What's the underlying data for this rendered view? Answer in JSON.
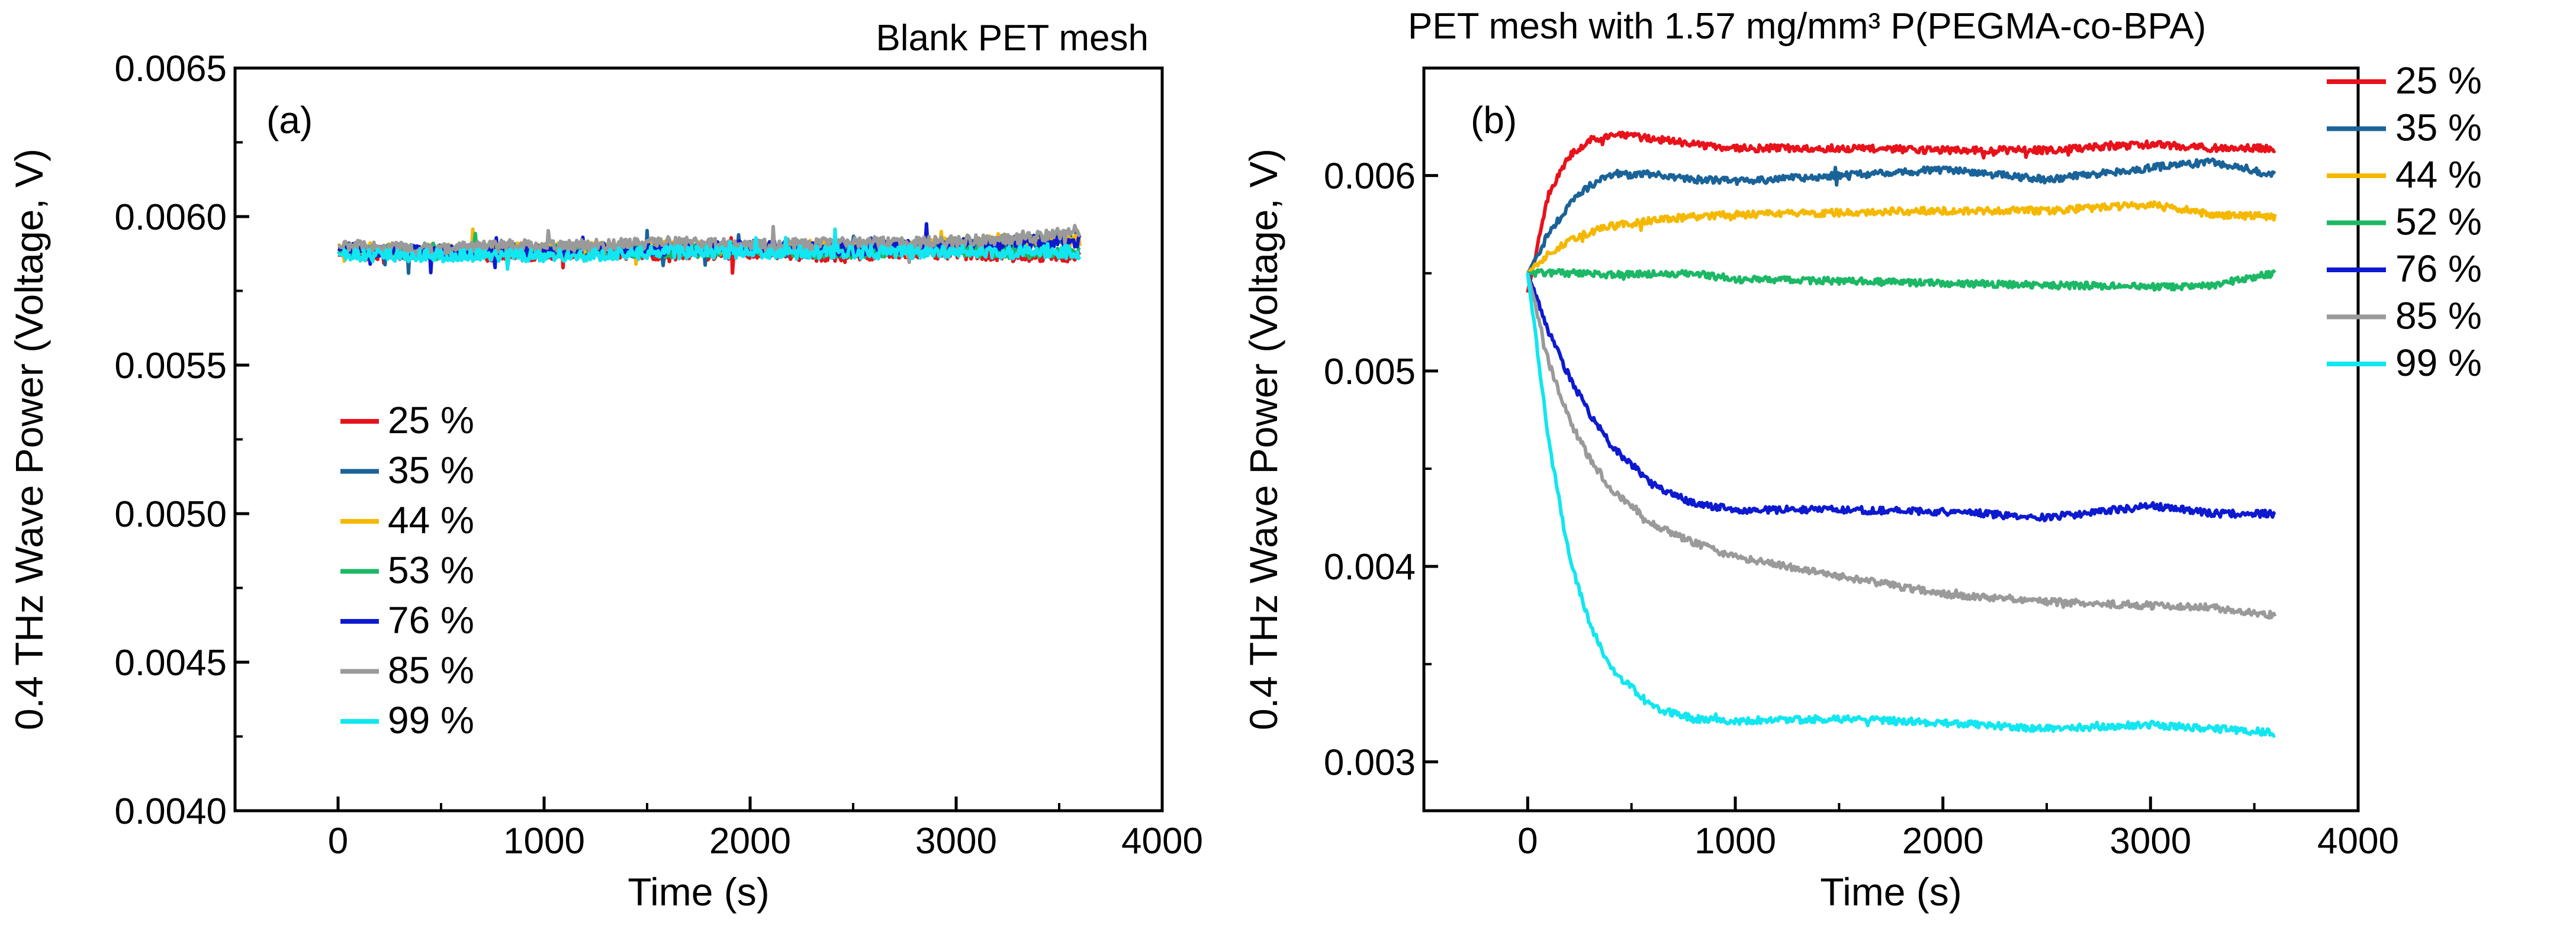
{
  "chart_data": [
    {
      "type": "line",
      "panel": "(a)",
      "title": "Blank PET mesh",
      "xlabel": "Time (s)",
      "ylabel": "0.4 THz Wave Power (Voltage, V)",
      "xlim": [
        -500,
        4000
      ],
      "ylim": [
        0.004,
        0.0065
      ],
      "xticks": [
        0,
        1000,
        2000,
        3000,
        4000
      ],
      "xtick_labels": [
        "0",
        "1000",
        "2000",
        "3000",
        "4000"
      ],
      "yticks": [
        0.004,
        0.0045,
        0.005,
        0.0055,
        0.006,
        0.0065
      ],
      "ytick_labels": [
        "0.0040",
        "0.0045",
        "0.0050",
        "0.0055",
        "0.0060",
        "0.0065"
      ],
      "legend_position": "lower-left",
      "series": [
        {
          "name": "25 %",
          "color": "#e8121b",
          "x": [
            0,
            400,
            800,
            1200,
            1600,
            2000,
            2400,
            2800,
            3200,
            3600
          ],
          "values": [
            0.00587,
            0.00588,
            0.00587,
            0.00588,
            0.00587,
            0.00588,
            0.00587,
            0.00588,
            0.00587,
            0.00587
          ]
        },
        {
          "name": "35 %",
          "color": "#1a6399",
          "x": [
            0,
            400,
            800,
            1200,
            1600,
            2000,
            2400,
            2800,
            3200,
            3600
          ],
          "values": [
            0.00589,
            0.00588,
            0.00589,
            0.00588,
            0.00589,
            0.00589,
            0.00588,
            0.0059,
            0.00591,
            0.00593
          ]
        },
        {
          "name": "44 %",
          "color": "#f5b800",
          "x": [
            0,
            400,
            800,
            1200,
            1600,
            2000,
            2400,
            2800,
            3200,
            3600
          ],
          "values": [
            0.0059,
            0.00588,
            0.00589,
            0.00589,
            0.0059,
            0.00589,
            0.0059,
            0.0059,
            0.00592,
            0.00592
          ]
        },
        {
          "name": "53 %",
          "color": "#1cb866",
          "x": [
            0,
            400,
            800,
            1200,
            1600,
            2000,
            2400,
            2800,
            3200,
            3600
          ],
          "values": [
            0.00588,
            0.00589,
            0.00588,
            0.00589,
            0.00588,
            0.00589,
            0.00588,
            0.00589,
            0.00588,
            0.00588
          ]
        },
        {
          "name": "76 %",
          "color": "#0d1ad0",
          "x": [
            0,
            400,
            800,
            1200,
            1600,
            2000,
            2400,
            2800,
            3200,
            3600
          ],
          "values": [
            0.00589,
            0.00588,
            0.00588,
            0.00589,
            0.00589,
            0.0059,
            0.00589,
            0.0059,
            0.00591,
            0.00592
          ]
        },
        {
          "name": "85 %",
          "color": "#9a9a9a",
          "x": [
            0,
            400,
            800,
            1200,
            1600,
            2000,
            2400,
            2800,
            3200,
            3600
          ],
          "values": [
            0.0059,
            0.00589,
            0.0059,
            0.0059,
            0.00591,
            0.0059,
            0.00591,
            0.00591,
            0.00592,
            0.00595
          ]
        },
        {
          "name": "99 %",
          "color": "#12e6f0",
          "x": [
            0,
            400,
            800,
            1200,
            1600,
            2000,
            2400,
            2800,
            3200,
            3600
          ],
          "values": [
            0.00587,
            0.00587,
            0.00587,
            0.00587,
            0.00588,
            0.00588,
            0.00588,
            0.00588,
            0.00588,
            0.00588
          ]
        }
      ]
    },
    {
      "type": "line",
      "panel": "(b)",
      "title": "PET mesh with 1.57 mg/mm³ P(PEGMA-co-BPA)",
      "xlabel": "Time (s)",
      "ylabel": "0.4 THz Wave Power (Voltage, V)",
      "xlim": [
        -500,
        4000
      ],
      "ylim": [
        0.00275,
        0.00655
      ],
      "xticks": [
        0,
        1000,
        2000,
        3000,
        4000
      ],
      "xtick_labels": [
        "0",
        "1000",
        "2000",
        "3000",
        "4000"
      ],
      "yticks": [
        0.003,
        0.004,
        0.005,
        0.006
      ],
      "ytick_labels": [
        "0.003",
        "0.004",
        "0.005",
        "0.006"
      ],
      "legend_position": "outside-right",
      "series": [
        {
          "name": "25 %",
          "color": "#e8121b",
          "x": [
            0,
            100,
            200,
            300,
            400,
            600,
            800,
            1000,
            1500,
            2000,
            2500,
            3000,
            3300,
            3600
          ],
          "values": [
            0.0054,
            0.0059,
            0.0061,
            0.00618,
            0.00621,
            0.00619,
            0.00616,
            0.00614,
            0.00614,
            0.00613,
            0.00613,
            0.00616,
            0.00614,
            0.00614
          ]
        },
        {
          "name": "35 %",
          "color": "#1a6399",
          "x": [
            0,
            100,
            200,
            300,
            400,
            600,
            800,
            1000,
            1500,
            2000,
            2500,
            3000,
            3300,
            3600
          ],
          "values": [
            0.0055,
            0.0057,
            0.00585,
            0.00595,
            0.006,
            0.00601,
            0.00598,
            0.00597,
            0.006,
            0.00603,
            0.00598,
            0.00604,
            0.00607,
            0.006
          ]
        },
        {
          "name": "44 %",
          "color": "#f5b800",
          "x": [
            0,
            100,
            200,
            300,
            400,
            600,
            800,
            1000,
            1500,
            2000,
            2500,
            3000,
            3300,
            3600
          ],
          "values": [
            0.0055,
            0.0056,
            0.00567,
            0.00571,
            0.00574,
            0.00577,
            0.00579,
            0.0058,
            0.00581,
            0.00582,
            0.00582,
            0.00585,
            0.0058,
            0.00579
          ]
        },
        {
          "name": "52 %",
          "color": "#1cb866",
          "x": [
            0,
            100,
            200,
            300,
            400,
            600,
            800,
            1000,
            1500,
            2000,
            2500,
            3000,
            3300,
            3600
          ],
          "values": [
            0.0055,
            0.0055,
            0.0055,
            0.0055,
            0.00549,
            0.0055,
            0.0055,
            0.00547,
            0.00546,
            0.00545,
            0.00544,
            0.00543,
            0.00544,
            0.0055
          ]
        },
        {
          "name": "76 %",
          "color": "#0d1ad0",
          "x": [
            0,
            100,
            200,
            300,
            400,
            600,
            800,
            1000,
            1500,
            2000,
            2500,
            3000,
            3300,
            3600
          ],
          "values": [
            0.0055,
            0.0052,
            0.00497,
            0.00478,
            0.00462,
            0.00442,
            0.00432,
            0.00429,
            0.00429,
            0.00428,
            0.00425,
            0.00431,
            0.00427,
            0.00427
          ]
        },
        {
          "name": "85 %",
          "color": "#9a9a9a",
          "x": [
            0,
            100,
            200,
            300,
            400,
            600,
            800,
            1000,
            1500,
            2000,
            2500,
            3000,
            3300,
            3600
          ],
          "values": [
            0.0055,
            0.00505,
            0.00475,
            0.00455,
            0.0044,
            0.00422,
            0.00412,
            0.00405,
            0.00395,
            0.00386,
            0.00382,
            0.0038,
            0.00379,
            0.00375
          ]
        },
        {
          "name": "99 %",
          "color": "#12e6f0",
          "x": [
            0,
            100,
            200,
            300,
            400,
            600,
            800,
            1000,
            1500,
            2000,
            2500,
            3000,
            3300,
            3600
          ],
          "values": [
            0.0055,
            0.00465,
            0.00405,
            0.0037,
            0.00348,
            0.00328,
            0.00322,
            0.00321,
            0.00322,
            0.0032,
            0.00317,
            0.00319,
            0.00317,
            0.00315
          ]
        }
      ]
    }
  ]
}
